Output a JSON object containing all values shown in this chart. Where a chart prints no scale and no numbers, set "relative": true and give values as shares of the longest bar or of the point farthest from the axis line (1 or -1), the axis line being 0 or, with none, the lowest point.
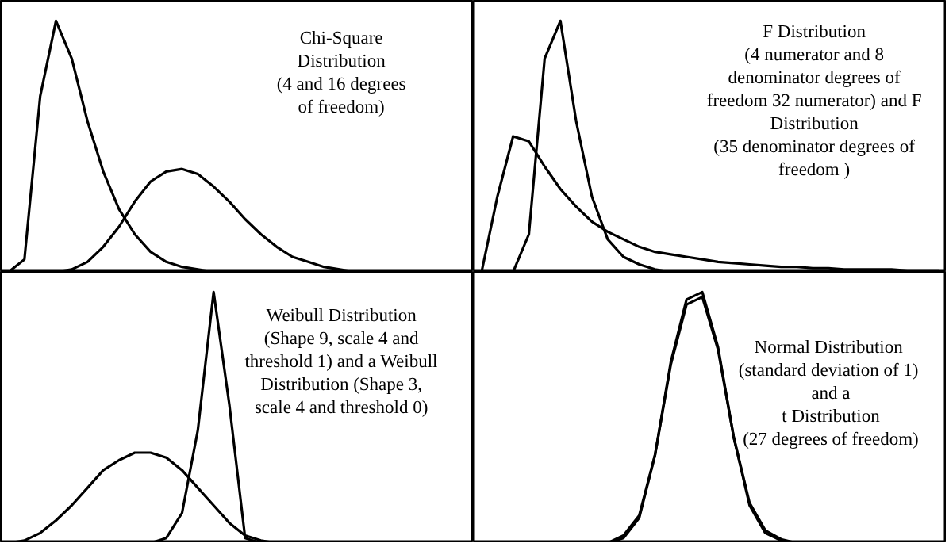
{
  "chart_data": [
    {
      "type": "line",
      "relative": true,
      "categories": [
        null,
        null,
        null,
        null,
        null,
        null,
        null,
        null,
        null,
        null,
        null,
        null,
        null,
        null,
        null,
        null,
        null,
        null,
        null,
        null,
        null,
        null,
        null,
        null,
        null,
        null,
        null,
        null,
        null,
        null
      ],
      "annotations": [
        "Chi-Square",
        "Distribution",
        "(4 and 16 degrees",
        "of freedom)"
      ],
      "series": [
        {
          "color": "#000000",
          "values": [
            0,
            0.05,
            0.7,
            1.0,
            0.85,
            0.6,
            0.4,
            0.25,
            0.15,
            0.08,
            0.04,
            0.02,
            0.01,
            0,
            0,
            0,
            0,
            0,
            0,
            0,
            0,
            0,
            0,
            0,
            0,
            0,
            0,
            0,
            0,
            0
          ]
        },
        {
          "color": "#000000",
          "values": [
            0,
            0,
            0,
            0,
            0.01,
            0.04,
            0.1,
            0.18,
            0.28,
            0.36,
            0.4,
            0.41,
            0.39,
            0.34,
            0.28,
            0.21,
            0.15,
            0.1,
            0.06,
            0.04,
            0.02,
            0.01,
            0,
            0,
            0,
            0,
            0,
            0,
            0,
            0
          ]
        }
      ]
    },
    {
      "type": "line",
      "relative": true,
      "categories": [
        null,
        null,
        null,
        null,
        null,
        null,
        null,
        null,
        null,
        null,
        null,
        null,
        null,
        null,
        null,
        null,
        null,
        null,
        null,
        null,
        null,
        null,
        null,
        null,
        null,
        null,
        null,
        null,
        null,
        null
      ],
      "annotations": [
        "F Distribution",
        "(4 numerator and 8",
        "denominator degrees of",
        "freedom 32 numerator) and F",
        "Distribution",
        "(35 denominator degrees of",
        "freedom )"
      ],
      "series": [
        {
          "color": "#000000",
          "values": [
            0,
            0,
            0,
            0.15,
            0.85,
            1.0,
            0.6,
            0.3,
            0.13,
            0.06,
            0.03,
            0.01,
            0,
            0,
            0,
            0,
            0,
            0,
            0,
            0,
            0,
            0,
            0,
            0,
            0,
            0,
            0,
            0,
            0,
            0
          ]
        },
        {
          "color": "#000000",
          "values": [
            0,
            0.3,
            0.54,
            0.52,
            0.42,
            0.33,
            0.26,
            0.2,
            0.16,
            0.13,
            0.1,
            0.08,
            0.07,
            0.06,
            0.05,
            0.04,
            0.035,
            0.03,
            0.025,
            0.02,
            0.02,
            0.015,
            0.015,
            0.01,
            0.01,
            0.01,
            0.01,
            0.005,
            0.005,
            0.005
          ]
        }
      ]
    },
    {
      "type": "line",
      "relative": true,
      "categories": [
        null,
        null,
        null,
        null,
        null,
        null,
        null,
        null,
        null,
        null,
        null,
        null,
        null,
        null,
        null,
        null,
        null,
        null,
        null,
        null,
        null,
        null,
        null,
        null,
        null,
        null,
        null,
        null,
        null,
        null
      ],
      "annotations": [
        "Weibull Distribution",
        "(Shape 9, scale 4 and",
        "threshold 1) and a Weibull",
        "Distribution (Shape 3,",
        "scale 4 and threshold 0)"
      ],
      "series": [
        {
          "color": "#000000",
          "values": [
            0,
            0,
            0,
            0,
            0,
            0,
            0,
            0,
            0,
            0,
            0.02,
            0.12,
            0.45,
            1.0,
            0.55,
            0.02,
            0,
            0,
            0,
            0,
            0,
            0,
            0,
            0,
            0,
            0,
            0,
            0,
            0,
            0
          ]
        },
        {
          "color": "#000000",
          "values": [
            0,
            0.01,
            0.04,
            0.09,
            0.15,
            0.22,
            0.29,
            0.33,
            0.36,
            0.36,
            0.34,
            0.29,
            0.22,
            0.15,
            0.08,
            0.03,
            0.01,
            0,
            0,
            0,
            0,
            0,
            0,
            0,
            0,
            0,
            0,
            0,
            0,
            0
          ]
        }
      ]
    },
    {
      "type": "line",
      "relative": true,
      "categories": [
        null,
        null,
        null,
        null,
        null,
        null,
        null,
        null,
        null,
        null,
        null,
        null,
        null,
        null,
        null,
        null,
        null,
        null,
        null,
        null,
        null,
        null,
        null,
        null,
        null,
        null,
        null,
        null,
        null,
        null
      ],
      "annotations": [
        "Normal  Distribution",
        "(standard deviation  of 1)",
        "and a",
        "t Distribution",
        "(27 degrees of freedom)"
      ],
      "series": [
        {
          "color": "#000000",
          "values": [
            0,
            0,
            0,
            0,
            0,
            0,
            0,
            0,
            0,
            0.02,
            0.1,
            0.35,
            0.72,
            0.97,
            1.0,
            0.78,
            0.42,
            0.15,
            0.04,
            0.01,
            0,
            0,
            0,
            0,
            0,
            0,
            0,
            0,
            0,
            0
          ]
        },
        {
          "color": "#000000",
          "values": [
            0,
            0,
            0,
            0,
            0,
            0,
            0,
            0,
            0,
            0.03,
            0.11,
            0.35,
            0.71,
            0.95,
            0.98,
            0.77,
            0.42,
            0.16,
            0.05,
            0.015,
            0,
            0,
            0,
            0,
            0,
            0,
            0,
            0,
            0,
            0
          ]
        }
      ]
    }
  ]
}
